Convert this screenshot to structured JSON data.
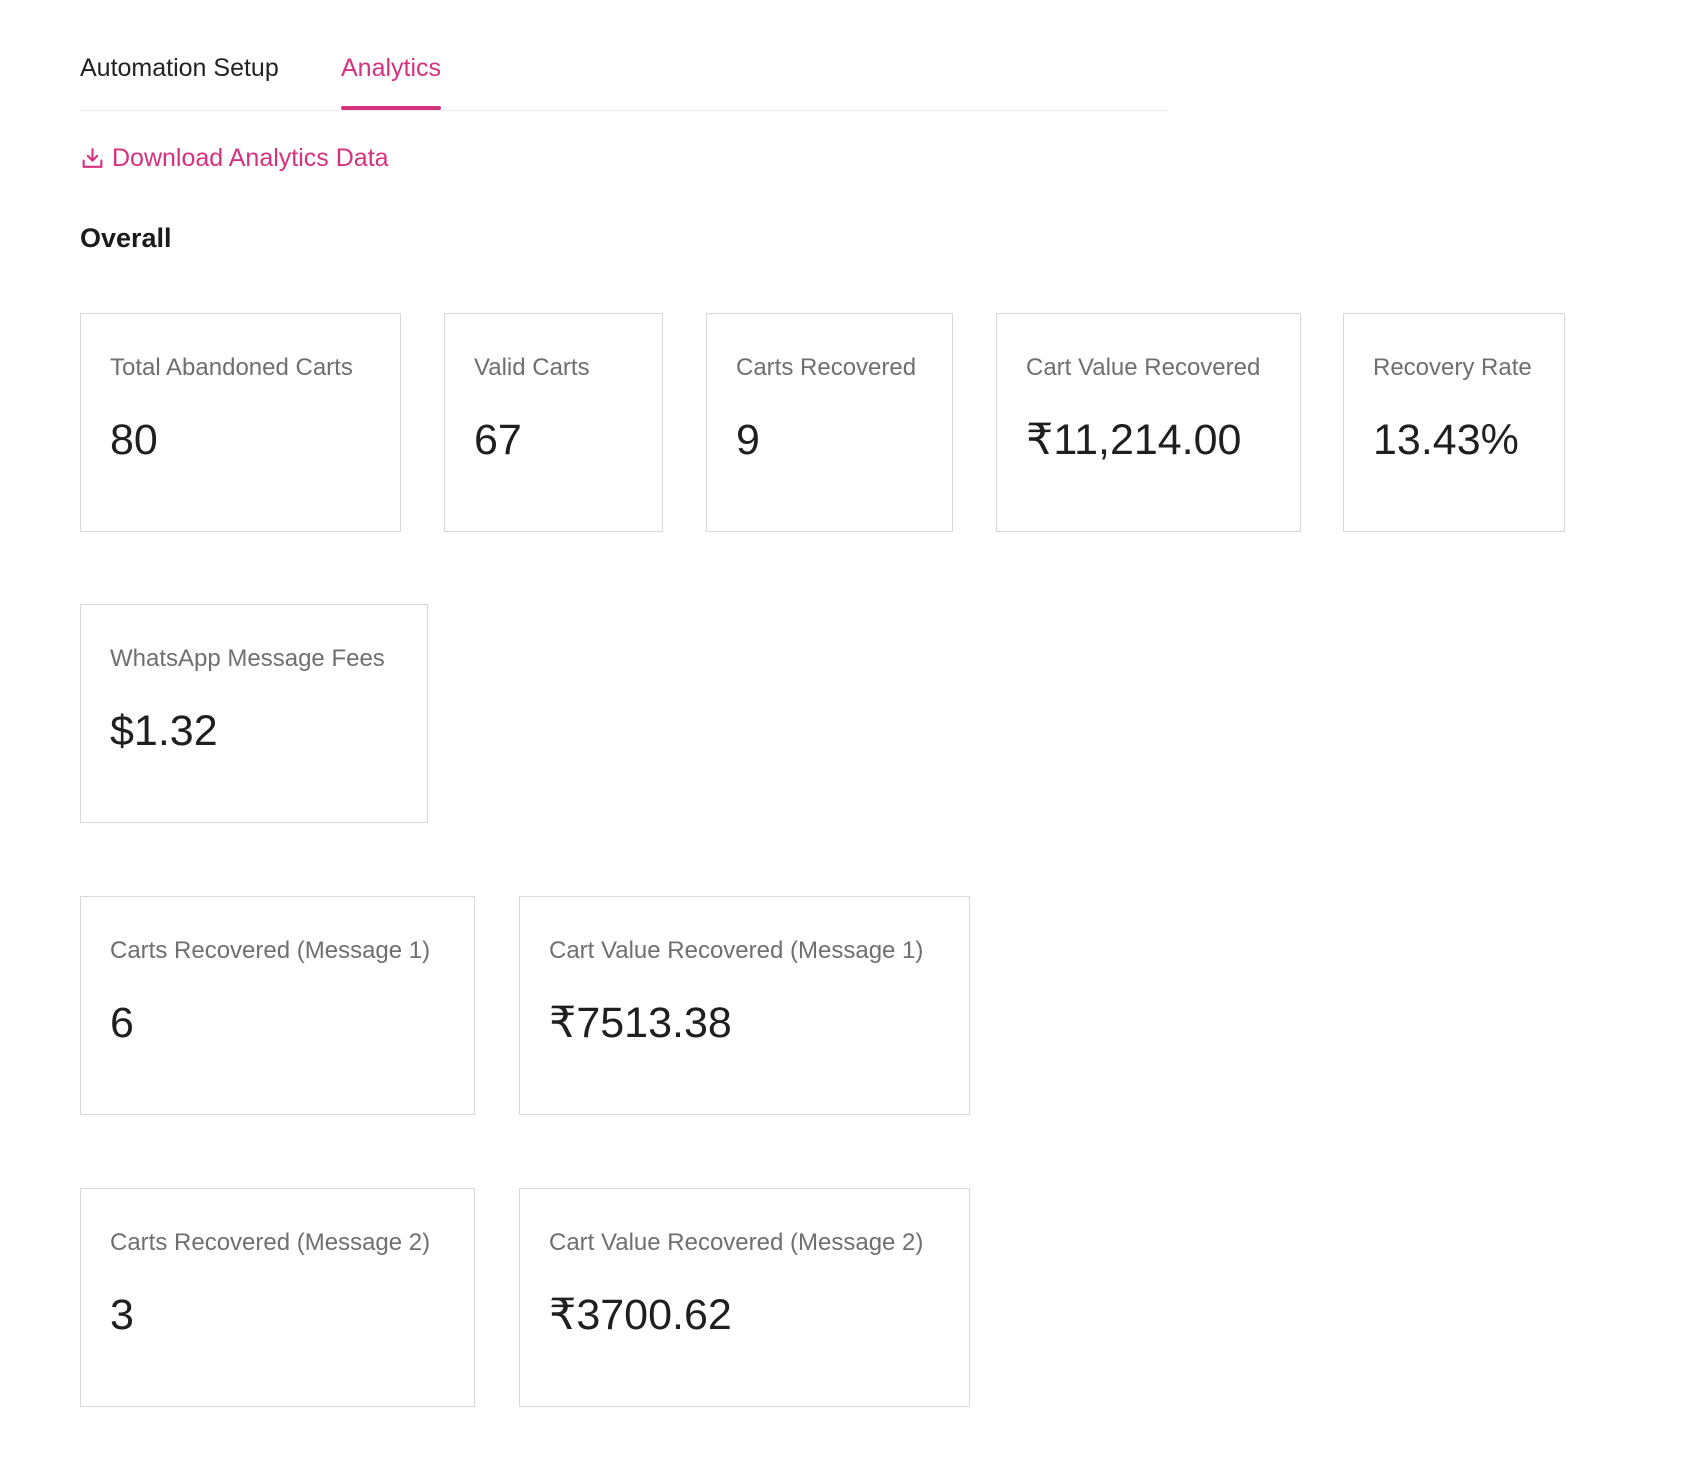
{
  "tabs": [
    {
      "label": "Automation Setup",
      "active": false
    },
    {
      "label": "Analytics",
      "active": true
    }
  ],
  "download": {
    "label": "Download Analytics Data",
    "icon": "download-icon"
  },
  "section": {
    "title": "Overall"
  },
  "metrics": {
    "total_abandoned_carts": {
      "label": "Total Abandoned Carts",
      "value": "80"
    },
    "valid_carts": {
      "label": "Valid Carts",
      "value": "67"
    },
    "carts_recovered": {
      "label": "Carts Recovered",
      "value": "9"
    },
    "cart_value_recovered": {
      "label": "Cart Value Recovered",
      "value": "₹11,214.00"
    },
    "recovery_rate": {
      "label": "Recovery Rate",
      "value": "13.43%"
    },
    "whatsapp_message_fees": {
      "label": "WhatsApp Message Fees",
      "value": "$1.32"
    },
    "carts_recovered_message_1": {
      "label": "Carts Recovered (Message 1)",
      "value": "6"
    },
    "cart_value_recovered_message_1": {
      "label": "Cart Value Recovered (Message 1)",
      "value": "₹7513.38"
    },
    "carts_recovered_message_2": {
      "label": "Carts Recovered (Message 2)",
      "value": "3"
    },
    "cart_value_recovered_message_2": {
      "label": "Cart Value Recovered (Message 2)",
      "value": "₹3700.62"
    }
  },
  "colors": {
    "accent": "#d6317f",
    "card_border": "#d9d9d9",
    "label_text": "#6f6f6f",
    "value_text": "#1f1f1f"
  }
}
